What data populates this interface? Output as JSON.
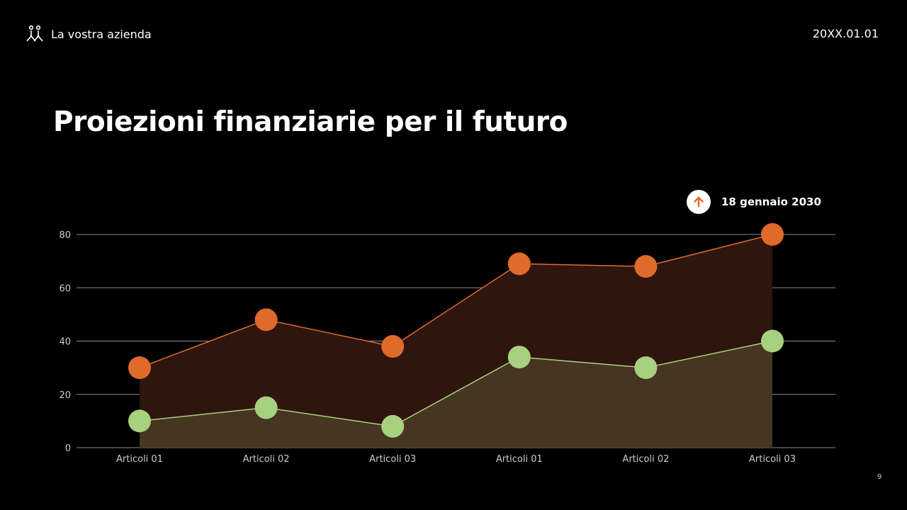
{
  "header": {
    "company": "La vostra azienda",
    "date": "20XX.01.01",
    "logo_icon": "people-icon"
  },
  "title": "Proiezioni finanziarie per il futuro",
  "badge": {
    "icon": "arrow-up-icon",
    "text": "18 gennaio 2030"
  },
  "page_number": "9",
  "chart_data": {
    "type": "area",
    "categories": [
      "Articoli 01",
      "Articoli 02",
      "Articoli 03",
      "Articoli 01",
      "Articoli 02",
      "Articoli 03"
    ],
    "series": [
      {
        "values": [
          30,
          48,
          38,
          69,
          68,
          80
        ],
        "color": "#e06a2a",
        "fill": "#2e150e"
      },
      {
        "values": [
          10,
          15,
          8,
          34,
          30,
          40
        ],
        "color": "#a8d17f",
        "fill": "#463520"
      }
    ],
    "ylim": [
      0,
      80
    ],
    "yticks": [
      0,
      20,
      40,
      60,
      80
    ],
    "grid": true,
    "legend": "none"
  }
}
